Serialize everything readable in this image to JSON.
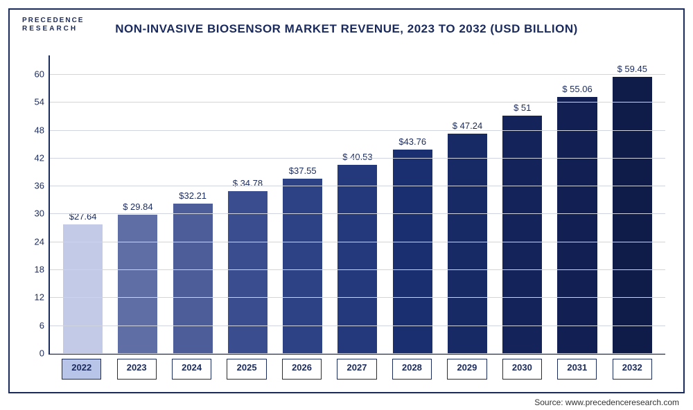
{
  "logo": {
    "line1": "PRECEDENCE",
    "line2": "RESEARCH"
  },
  "title": "NON-INVASIVE BIOSENSOR MARKET REVENUE, 2023 TO 2032 (USD BILLION)",
  "source": "Source: www.precedenceresearch.com",
  "chart": {
    "type": "bar",
    "ymax": 64,
    "yticks": [
      0,
      6,
      12,
      18,
      24,
      30,
      36,
      42,
      48,
      54,
      60
    ],
    "categories": [
      "2022",
      "2023",
      "2024",
      "2025",
      "2026",
      "2027",
      "2028",
      "2029",
      "2030",
      "2031",
      "2032"
    ],
    "values": [
      27.64,
      29.84,
      32.21,
      34.78,
      37.55,
      40.53,
      43.76,
      47.24,
      51,
      55.06,
      59.45
    ],
    "value_labels": [
      "$27.64",
      "$ 29.84",
      "$32.21",
      "$ 34.78",
      "$37.55",
      "$ 40.53",
      "$43.76",
      "$ 47.24",
      "$ 51",
      "$ 55.06",
      "$ 59.45"
    ],
    "bar_colors": [
      "#c2cae8",
      "#5f6fa6",
      "#4c5d99",
      "#3a4d8f",
      "#2d4285",
      "#24397c",
      "#1a2f6f",
      "#172a65",
      "#14245b",
      "#111f52",
      "#0f1b49"
    ],
    "highlight_index": 0,
    "border_color": "#1a2a5c",
    "grid_color": "#d0d4e0",
    "bar_width_pct": 72,
    "label_fontsize": 13,
    "title_fontsize": 17
  }
}
